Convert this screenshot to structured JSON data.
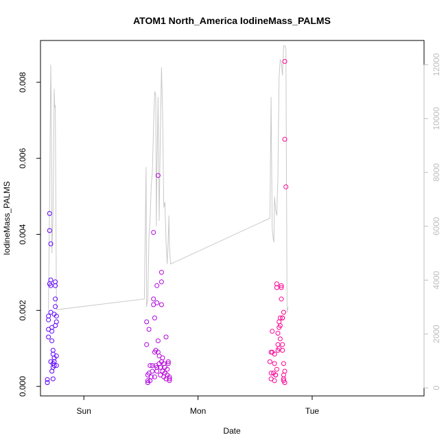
{
  "chart_data": {
    "type": "scatter",
    "title": "ATOM1 North_America IodineMass_PALMS",
    "xlabel": "Date",
    "ylabel": "IodineMass_PALMS",
    "x_unit": "day",
    "xlim": [
      -0.38,
      2.98
    ],
    "ylim": [
      -0.00025,
      0.0091
    ],
    "y_ticks": [
      0.0,
      0.002,
      0.004,
      0.006,
      0.008
    ],
    "y_tick_labels": [
      "0.000",
      "0.002",
      "0.004",
      "0.006",
      "0.008"
    ],
    "x_ticks": [
      0,
      1,
      2
    ],
    "x_tick_labels": [
      "Sun",
      "Mon",
      "Tue"
    ],
    "y2": {
      "label": "",
      "ylim": [
        -300,
        12900
      ],
      "ticks": [
        0,
        2000,
        4000,
        6000,
        8000,
        10000,
        12000
      ],
      "tick_labels": [
        "0",
        "2000",
        "4000",
        "6000",
        "8000",
        "10000",
        "12000"
      ],
      "color": "#bdbdbd"
    },
    "series": [
      {
        "name": "",
        "kind": "points",
        "color_gradient": [
          "#5a00ff",
          "#b800d8",
          "#ff0090"
        ],
        "points": [
          [
            -0.32,
            0.0001
          ],
          [
            -0.32,
            0.00018
          ],
          [
            -0.31,
            0.0013
          ],
          [
            -0.31,
            0.0015
          ],
          [
            -0.31,
            0.00175
          ],
          [
            -0.31,
            0.00185
          ],
          [
            -0.3,
            0.0041
          ],
          [
            -0.3,
            0.00455
          ],
          [
            -0.29,
            0.00375
          ],
          [
            -0.3,
            0.0027
          ],
          [
            -0.29,
            0.00265
          ],
          [
            -0.29,
            0.0028
          ],
          [
            -0.29,
            0.00195
          ],
          [
            -0.28,
            0.00155
          ],
          [
            -0.28,
            0.00145
          ],
          [
            -0.28,
            0.0012
          ],
          [
            -0.29,
            0.00065
          ],
          [
            -0.28,
            0.0004
          ],
          [
            -0.27,
            0.00095
          ],
          [
            -0.27,
            0.00085
          ],
          [
            -0.27,
            0.0006
          ],
          [
            -0.27,
            0.0005
          ],
          [
            -0.26,
            0.00065
          ],
          [
            -0.26,
            0.00055
          ],
          [
            -0.26,
            0.00075
          ],
          [
            -0.27,
            0.0002
          ],
          [
            -0.25,
            0.00265
          ],
          [
            -0.25,
            0.00275
          ],
          [
            -0.25,
            0.0021
          ],
          [
            -0.25,
            0.0023
          ],
          [
            -0.26,
            0.0019
          ],
          [
            -0.24,
            0.00185
          ],
          [
            -0.24,
            0.0017
          ],
          [
            -0.25,
            0.0016
          ],
          [
            -0.24,
            0.00055
          ],
          [
            -0.24,
            0.0008
          ],
          [
            0.55,
            0.0017
          ],
          [
            0.55,
            0.0011
          ],
          [
            0.56,
            0.0003
          ],
          [
            0.56,
            0.00015
          ],
          [
            0.56,
            0.0001
          ],
          [
            0.57,
            0.00035
          ],
          [
            0.57,
            0.0015
          ],
          [
            0.58,
            0.00055
          ],
          [
            0.58,
            0.00015
          ],
          [
            0.59,
            0.00025
          ],
          [
            0.6,
            0.0004
          ],
          [
            0.6,
            0.00055
          ],
          [
            0.61,
            0.0023
          ],
          [
            0.61,
            0.00215
          ],
          [
            0.61,
            0.00405
          ],
          [
            0.62,
            0.0018
          ],
          [
            0.62,
            0.00025
          ],
          [
            0.62,
            0.0009
          ],
          [
            0.63,
            0.00095
          ],
          [
            0.63,
            0.00055
          ],
          [
            0.64,
            0.00265
          ],
          [
            0.64,
            0.0022
          ],
          [
            0.64,
            0.0005
          ],
          [
            0.64,
            0.0004
          ],
          [
            0.65,
            0.00555
          ],
          [
            0.65,
            0.0012
          ],
          [
            0.65,
            0.0009
          ],
          [
            0.66,
            0.0008
          ],
          [
            0.66,
            0.0006
          ],
          [
            0.67,
            0.0005
          ],
          [
            0.67,
            0.0003
          ],
          [
            0.68,
            0.00275
          ],
          [
            0.68,
            0.00215
          ],
          [
            0.68,
            0.003
          ],
          [
            0.68,
            0.00065
          ],
          [
            0.69,
            0.0004
          ],
          [
            0.69,
            0.00075
          ],
          [
            0.7,
            0.0006
          ],
          [
            0.7,
            0.00025
          ],
          [
            0.71,
            0.0005
          ],
          [
            0.71,
            0.00035
          ],
          [
            0.72,
            0.0002
          ],
          [
            0.72,
            0.0013
          ],
          [
            0.73,
            0.0003
          ],
          [
            0.73,
            0.00045
          ],
          [
            0.74,
            0.00065
          ],
          [
            0.74,
            0.0006
          ],
          [
            0.75,
            0.0002
          ],
          [
            0.75,
            0.00015
          ],
          [
            0.75,
            0.00025
          ],
          [
            1.63,
            0.00065
          ],
          [
            1.64,
            0.0009
          ],
          [
            1.64,
            0.0002
          ],
          [
            1.64,
            0.00035
          ],
          [
            1.65,
            0.00145
          ],
          [
            1.65,
            0.0009
          ],
          [
            1.66,
            0.00035
          ],
          [
            1.67,
            0.0006
          ],
          [
            1.67,
            0.00085
          ],
          [
            1.67,
            0.00015
          ],
          [
            1.68,
            0.0003
          ],
          [
            1.68,
            0.0003
          ],
          [
            1.69,
            0.00045
          ],
          [
            1.69,
            0.0026
          ],
          [
            1.69,
            0.0027
          ],
          [
            1.7,
            0.00095
          ],
          [
            1.7,
            0.0011
          ],
          [
            1.7,
            0.0014
          ],
          [
            1.71,
            0.0017
          ],
          [
            1.71,
            0.001
          ],
          [
            1.71,
            0.00155
          ],
          [
            1.72,
            0.0018
          ],
          [
            1.72,
            0.00125
          ],
          [
            1.72,
            0.0016
          ],
          [
            1.73,
            0.0026
          ],
          [
            1.73,
            0.00265
          ],
          [
            1.73,
            0.0023
          ],
          [
            1.74,
            0.0018
          ],
          [
            1.74,
            0.0018
          ],
          [
            1.74,
            0.0011
          ],
          [
            1.74,
            0.00095
          ],
          [
            1.75,
            0.0006
          ],
          [
            1.75,
            0.0003
          ],
          [
            1.75,
            0.0002
          ],
          [
            1.75,
            0.00015
          ],
          [
            1.76,
            0.0004
          ],
          [
            1.76,
            0.0001
          ],
          [
            1.76,
            0.0065
          ],
          [
            1.76,
            0.00855
          ],
          [
            1.77,
            0.00525
          ],
          [
            1.75,
            0.00195
          ]
        ]
      },
      {
        "name": "",
        "kind": "line",
        "axis": "right",
        "color": "#c8c8c8",
        "points": [
          [
            -0.31,
            2900
          ],
          [
            -0.3,
            7000
          ],
          [
            -0.29,
            12000
          ],
          [
            -0.285,
            10400
          ],
          [
            -0.28,
            5000
          ],
          [
            -0.27,
            6500
          ],
          [
            -0.26,
            11100
          ],
          [
            -0.255,
            10400
          ],
          [
            -0.25,
            10500
          ],
          [
            -0.24,
            2900
          ],
          [
            0.53,
            3300
          ],
          [
            0.545,
            8200
          ],
          [
            0.55,
            3000
          ],
          [
            0.56,
            3300
          ],
          [
            0.57,
            5600
          ],
          [
            0.58,
            6200
          ],
          [
            0.59,
            7500
          ],
          [
            0.6,
            8000
          ],
          [
            0.61,
            9600
          ],
          [
            0.62,
            11000
          ],
          [
            0.63,
            10900
          ],
          [
            0.635,
            6000
          ],
          [
            0.64,
            8000
          ],
          [
            0.65,
            10800
          ],
          [
            0.66,
            6200
          ],
          [
            0.67,
            9500
          ],
          [
            0.68,
            11900
          ],
          [
            0.69,
            10200
          ],
          [
            0.7,
            6700
          ],
          [
            0.71,
            6900
          ],
          [
            0.72,
            5400
          ],
          [
            0.73,
            4600
          ],
          [
            0.74,
            5600
          ],
          [
            0.745,
            6400
          ],
          [
            0.75,
            5200
          ],
          [
            0.76,
            4600
          ],
          [
            1.63,
            6300
          ],
          [
            1.64,
            10800
          ],
          [
            1.65,
            5900
          ],
          [
            1.66,
            5500
          ],
          [
            1.665,
            5400
          ],
          [
            1.67,
            7100
          ],
          [
            1.68,
            6600
          ],
          [
            1.69,
            6400
          ],
          [
            1.7,
            7800
          ],
          [
            1.71,
            11500
          ],
          [
            1.72,
            12200
          ],
          [
            1.73,
            12100
          ],
          [
            1.74,
            11600
          ],
          [
            1.75,
            12700
          ],
          [
            1.76,
            12700
          ],
          [
            1.77,
            12600
          ],
          [
            1.78,
            2800
          ],
          [
            1.79,
            3000
          ]
        ]
      }
    ]
  }
}
